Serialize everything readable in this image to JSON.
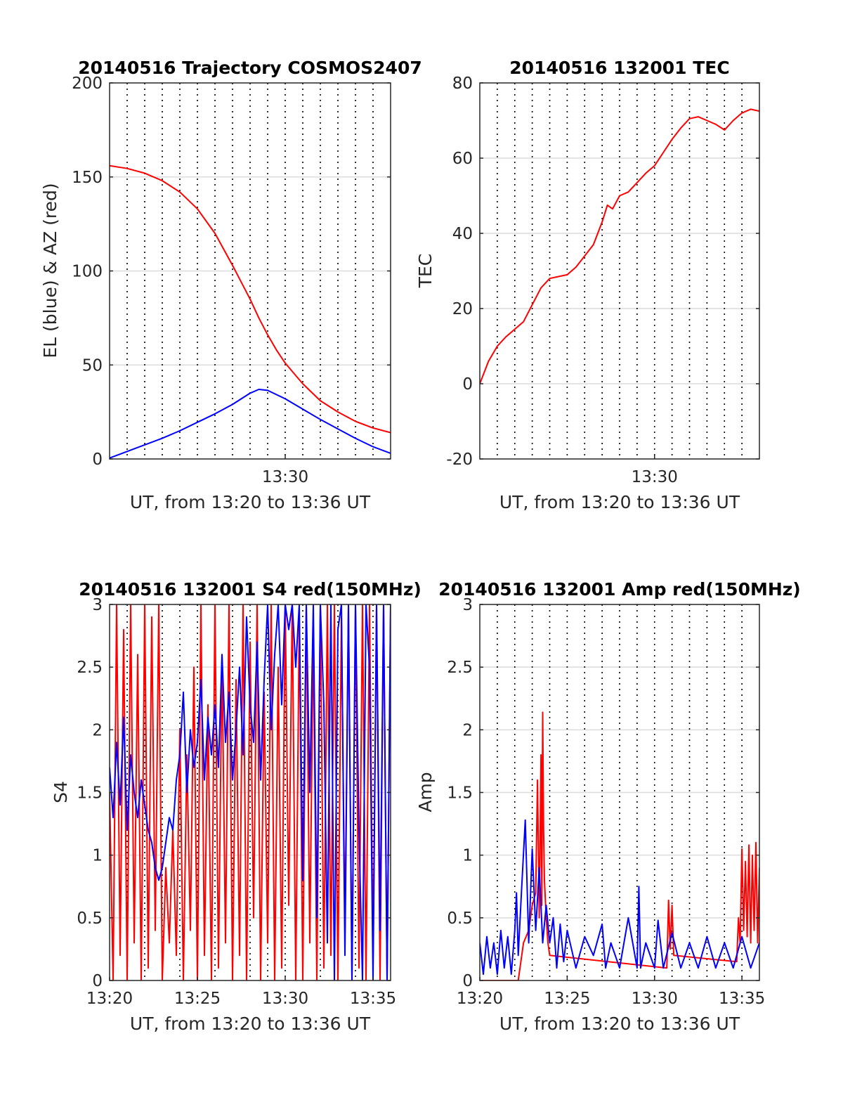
{
  "figure": {
    "xlabel": "UT, from 13:20 to 13:36 UT"
  },
  "chart_data": [
    {
      "id": "trajectory",
      "type": "line",
      "title": "20140516 Trajectory COSMOS2407",
      "xlabel": "UT, from 13:20 to 13:36 UT",
      "ylabel": "EL (blue) & AZ (red)",
      "xlim": [
        0,
        16
      ],
      "ylim": [
        0,
        200
      ],
      "yticks": [
        0,
        50,
        100,
        150,
        200
      ],
      "xticks": [
        {
          "value": 10,
          "label": "13:30"
        }
      ],
      "vgrid_minutes": [
        1,
        2,
        3,
        4,
        5,
        6,
        7,
        8,
        9,
        10,
        11,
        12,
        13,
        14,
        15
      ],
      "grid": true,
      "series": [
        {
          "name": "AZ",
          "color": "#ff0000",
          "x": [
            0,
            1,
            2,
            3,
            4,
            5,
            6,
            7,
            7.5,
            8,
            8.5,
            9,
            9.5,
            10,
            11,
            12,
            13,
            14,
            15,
            16
          ],
          "y": [
            156,
            154.5,
            152,
            148,
            142,
            133,
            120,
            103,
            94,
            85,
            75,
            66,
            58,
            51,
            40,
            31,
            25,
            20,
            16.5,
            14
          ]
        },
        {
          "name": "EL",
          "color": "#0000ff",
          "x": [
            0,
            1,
            2,
            3,
            4,
            5,
            6,
            7,
            7.5,
            8,
            8.5,
            9,
            10,
            11,
            12,
            13,
            14,
            15,
            16
          ],
          "y": [
            0.5,
            4,
            7.5,
            11,
            15,
            19.5,
            24,
            29,
            32,
            35,
            37,
            36.5,
            32,
            26.5,
            21,
            16,
            11,
            6.5,
            3
          ]
        }
      ]
    },
    {
      "id": "tec",
      "type": "line",
      "title": "20140516 132001 TEC",
      "xlabel": "UT, from 13:20 to 13:36 UT",
      "ylabel": "TEC",
      "xlim": [
        0,
        16
      ],
      "ylim": [
        -20,
        80
      ],
      "yticks": [
        -20,
        0,
        20,
        40,
        60,
        80
      ],
      "xticks": [
        {
          "value": 10,
          "label": "13:30"
        }
      ],
      "vgrid_minutes": [
        1,
        2,
        3,
        4,
        5,
        6,
        7,
        8,
        9,
        10,
        11,
        12,
        13,
        14,
        15
      ],
      "grid": true,
      "series": [
        {
          "name": "TEC",
          "color": "#ff0000",
          "x": [
            0,
            0.5,
            1,
            1.5,
            2,
            2.5,
            3,
            3.5,
            4,
            4.5,
            5,
            5.5,
            6,
            6.5,
            7,
            7.3,
            7.6,
            8,
            8.5,
            9,
            9.5,
            10,
            10.5,
            11,
            11.5,
            12,
            12.5,
            13,
            13.5,
            14,
            14.5,
            15,
            15.5,
            16
          ],
          "y": [
            0,
            6,
            10,
            12.5,
            14.5,
            16.5,
            21,
            25.5,
            28,
            28.5,
            29,
            31,
            34,
            37,
            43,
            47.5,
            46.5,
            50,
            51,
            53.5,
            56,
            58,
            61.5,
            65,
            68,
            70.5,
            71,
            70,
            69,
            67.5,
            70,
            72,
            73,
            72.5
          ]
        }
      ]
    },
    {
      "id": "s4",
      "type": "line",
      "title": "20140516 132001 S4 red(150MHz)",
      "xlabel": "UT, from 13:20 to 13:36 UT",
      "ylabel": "S4",
      "xlim": [
        0,
        16
      ],
      "ylim": [
        0,
        3
      ],
      "yticks": [
        0,
        0.5,
        1,
        1.5,
        2,
        2.5,
        3
      ],
      "xticks": [
        {
          "value": 0,
          "label": "13:20"
        },
        {
          "value": 5,
          "label": "13:25"
        },
        {
          "value": 10,
          "label": "13:30"
        },
        {
          "value": 15,
          "label": "13:35"
        }
      ],
      "vgrid_minutes": [
        1,
        2,
        3,
        4,
        5,
        6,
        7,
        8,
        9,
        10,
        11,
        12,
        13,
        14,
        15
      ],
      "grid": true,
      "series": [
        {
          "name": "150MHz",
          "color": "#ff0000",
          "x": [
            0,
            0.2,
            0.4,
            0.6,
            0.8,
            1,
            1.2,
            1.4,
            1.6,
            1.8,
            2,
            2.2,
            2.4,
            2.6,
            2.8,
            3,
            3.2,
            3.4,
            3.6,
            3.8,
            4,
            4.2,
            4.4,
            4.6,
            4.8,
            5,
            5.2,
            5.4,
            5.6,
            5.8,
            6,
            6.2,
            6.4,
            6.6,
            6.8,
            7,
            7.2,
            7.4,
            7.6,
            7.8,
            8,
            8.2,
            8.4,
            8.6,
            8.8,
            9,
            9.2,
            9.4,
            9.6,
            9.8,
            10,
            10.2,
            10.4,
            10.6,
            10.8,
            11,
            11.2,
            11.4,
            11.6,
            11.8,
            12,
            12.2,
            12.4,
            12.6,
            12.8,
            13,
            13.2,
            13.4,
            13.6,
            13.8,
            14,
            14.2,
            14.4,
            14.6,
            14.8,
            15,
            15.2,
            15.4,
            15.6,
            15.8,
            16
          ],
          "y": [
            1.5,
            0,
            3,
            0.2,
            2.8,
            0,
            3,
            0.3,
            2.6,
            0,
            3,
            0.1,
            2.9,
            0.4,
            3,
            0,
            0.9,
            0.3,
            1.2,
            0.2,
            2,
            0,
            1.8,
            0.4,
            2.5,
            0,
            3,
            0.2,
            2.2,
            0,
            3,
            0.1,
            2.6,
            0.3,
            3,
            0,
            2.4,
            0.2,
            3,
            0,
            2.7,
            0.5,
            3,
            0,
            2.3,
            0.3,
            3,
            0,
            2.5,
            0.1,
            3,
            0.6,
            3,
            0,
            2.9,
            0,
            3,
            0.3,
            2.8,
            0,
            3,
            0.1,
            3,
            0.2,
            3,
            0,
            2.9,
            0.4,
            3,
            0,
            3,
            0.1,
            3,
            0,
            3,
            0.2,
            3,
            0,
            3,
            0,
            3
          ]
        },
        {
          "name": "blue",
          "color": "#0000ff",
          "x": [
            0,
            0.2,
            0.4,
            0.6,
            0.8,
            1,
            1.2,
            1.4,
            1.6,
            1.8,
            2,
            2.2,
            2.4,
            2.6,
            2.8,
            3,
            3.2,
            3.4,
            3.6,
            3.8,
            4,
            4.2,
            4.4,
            4.6,
            4.8,
            5,
            5.2,
            5.4,
            5.6,
            5.8,
            6,
            6.2,
            6.4,
            6.6,
            6.8,
            7,
            7.2,
            7.4,
            7.6,
            7.8,
            8,
            8.2,
            8.4,
            8.6,
            8.8,
            9,
            9.2,
            9.4,
            9.6,
            9.8,
            10,
            10.2,
            10.4,
            10.6,
            10.8,
            11,
            11.2,
            11.4,
            11.6,
            11.8,
            12,
            12.2,
            12.4,
            12.6,
            12.8,
            13,
            13.2,
            13.4,
            13.6,
            13.8,
            14,
            14.2,
            14.4,
            14.6,
            14.8,
            15,
            15.2,
            15.4,
            15.6,
            15.8,
            16
          ],
          "y": [
            1.7,
            1.3,
            1.9,
            1.4,
            2.1,
            1.2,
            1.8,
            1.5,
            1.3,
            1.6,
            1.4,
            1.2,
            1.1,
            0.9,
            0.8,
            0.9,
            1.1,
            1.3,
            1.2,
            1.6,
            1.8,
            2.3,
            1.5,
            2.0,
            1.7,
            1.9,
            2.4,
            1.6,
            2.1,
            1.8,
            2.2,
            1.7,
            2.6,
            1.9,
            2.3,
            1.6,
            2.0,
            2.5,
            1.8,
            2.9,
            2.2,
            1.9,
            2.7,
            1.6,
            2.4,
            3,
            2.0,
            2.6,
            3,
            2.2,
            3,
            2.8,
            3,
            2.5,
            3,
            0.8,
            3,
            1.5,
            3,
            0.5,
            3,
            2.2,
            0.3,
            3,
            0,
            2.8,
            3,
            0.2,
            3,
            0,
            3,
            1.2,
            0,
            3,
            2.5,
            0,
            3,
            0.4,
            3,
            0,
            3
          ]
        }
      ]
    },
    {
      "id": "amp",
      "type": "line",
      "title": "20140516 132001 Amp red(150MHz)",
      "xlabel": "UT, from 13:20 to 13:36 UT",
      "ylabel": "Amp",
      "xlim": [
        0,
        16
      ],
      "ylim": [
        0,
        3
      ],
      "yticks": [
        0,
        0.5,
        1,
        1.5,
        2,
        2.5,
        3
      ],
      "xticks": [
        {
          "value": 0,
          "label": "13:20"
        },
        {
          "value": 5,
          "label": "13:25"
        },
        {
          "value": 10,
          "label": "13:30"
        },
        {
          "value": 15,
          "label": "13:35"
        }
      ],
      "vgrid_minutes": [
        1,
        2,
        3,
        4,
        5,
        6,
        7,
        8,
        9,
        10,
        11,
        12,
        13,
        14,
        15
      ],
      "grid": true,
      "series": [
        {
          "name": "150MHz",
          "color": "#ff0000",
          "x": [
            0,
            2.2,
            2.5,
            2.8,
            3.0,
            3.2,
            3.3,
            3.4,
            3.45,
            3.5,
            3.55,
            3.6,
            3.65,
            3.7,
            3.8,
            3.9,
            4.0,
            10.7,
            10.8,
            10.9,
            11.0,
            11.1,
            14.7,
            14.8,
            14.9,
            15.0,
            15.1,
            15.2,
            15.3,
            15.4,
            15.5,
            15.6,
            15.7,
            15.8,
            15.9,
            16
          ],
          "y": [
            0,
            0,
            0.3,
            0.4,
            0.6,
            0.7,
            1.6,
            0.5,
            1.1,
            1.8,
            0.6,
            2.14,
            1.2,
            0.8,
            0.5,
            0.3,
            0.2,
            0.1,
            0.64,
            0.25,
            0.6,
            0.2,
            0.15,
            0.5,
            0.3,
            1.05,
            0.4,
            0.95,
            0.35,
            1.08,
            0.3,
            1.0,
            0.4,
            1.1,
            0.3,
            0.9
          ]
        },
        {
          "name": "blue",
          "color": "#0000ff",
          "x": [
            0,
            0.2,
            0.4,
            0.6,
            0.8,
            1.0,
            1.2,
            1.4,
            1.6,
            1.8,
            2.0,
            2.1,
            2.2,
            2.4,
            2.6,
            2.8,
            3.0,
            3.2,
            3.4,
            3.6,
            3.8,
            4.0,
            4.2,
            4.4,
            4.6,
            4.8,
            5.0,
            5.5,
            6.0,
            6.5,
            7.0,
            7.2,
            7.5,
            8.0,
            8.5,
            9.0,
            9.1,
            9.2,
            9.5,
            10.0,
            10.2,
            10.5,
            11.0,
            11.5,
            12.0,
            12.5,
            13.0,
            13.5,
            14.0,
            14.5,
            15.0,
            15.5,
            16
          ],
          "y": [
            0.3,
            0.05,
            0.35,
            0.1,
            0.3,
            0.05,
            0.4,
            0.1,
            0.35,
            0.05,
            0.4,
            0.7,
            0.2,
            0.75,
            1.28,
            0.3,
            1.05,
            0.4,
            0.9,
            0.3,
            0.6,
            0.3,
            0.5,
            0.1,
            0.45,
            0.15,
            0.4,
            0.1,
            0.35,
            0.2,
            0.45,
            0.1,
            0.3,
            0.1,
            0.5,
            0.1,
            0.75,
            0.1,
            0.3,
            0.1,
            0.48,
            0.1,
            0.38,
            0.1,
            0.3,
            0.1,
            0.35,
            0.1,
            0.3,
            0.1,
            0.35,
            0.1,
            0.3
          ]
        }
      ]
    }
  ]
}
